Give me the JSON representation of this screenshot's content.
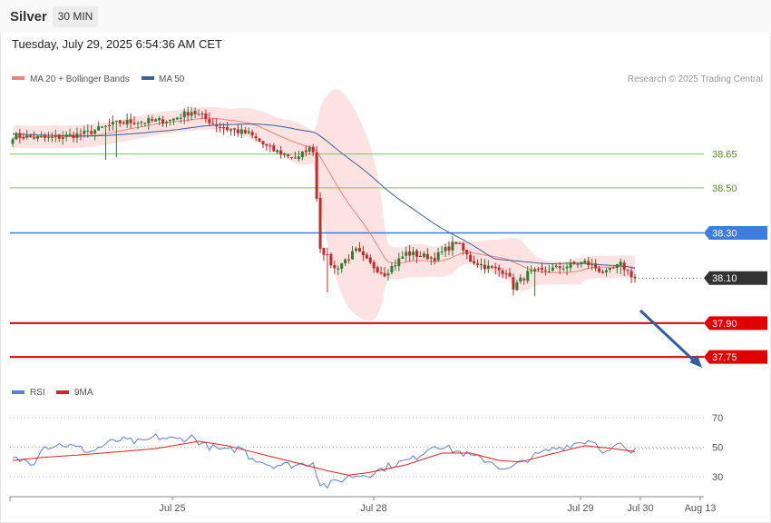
{
  "header": {
    "instrument": "Silver",
    "timeframe": "30 MIN",
    "datetime": "Tuesday, July 29, 2025 6:54:36 AM CET"
  },
  "price_legend": [
    {
      "label": "MA 20 + Bollinger Bands",
      "color": "#f08080"
    },
    {
      "label": "MA 50",
      "color": "#3a5f9a"
    }
  ],
  "credit": "Research © 2025 Trading Central",
  "rsi_legend": [
    {
      "label": "RSI",
      "color": "#5b7fd6"
    },
    {
      "label": "9MA",
      "color": "#e02020"
    }
  ],
  "colors": {
    "bull": "#2e7d32",
    "bear": "#c62828",
    "band_fill": "#fde2e2",
    "ma20": "#f08080",
    "ma50": "#3a5f9a",
    "resistance": "#8bc34a",
    "pivot": "#3d7de0",
    "support": "#e00000",
    "current": "#333333",
    "arrow": "#2f5fa0"
  },
  "chart_data": [
    {
      "type": "candlestick",
      "title": "Silver",
      "timeframe": "30 MIN",
      "x_ticks": [
        "Jul 25",
        "Jul 28",
        "Jul 29",
        "Jul 30",
        "Aug 13"
      ],
      "ylim": [
        37.65,
        38.89
      ],
      "levels": [
        {
          "value": 38.65,
          "label": "38.65",
          "kind": "resistance"
        },
        {
          "value": 38.5,
          "label": "38.50",
          "kind": "resistance"
        },
        {
          "value": 38.3,
          "label": "38.30",
          "kind": "pivot"
        },
        {
          "value": 38.1,
          "label": "38.10",
          "kind": "current"
        },
        {
          "value": 37.9,
          "label": "37.90",
          "kind": "support"
        },
        {
          "value": 37.75,
          "label": "37.75",
          "kind": "support"
        }
      ],
      "current_price": 38.1,
      "forecast_target": 37.75,
      "ohlc_keypoints": [
        {
          "i": 0,
          "close": 38.73
        },
        {
          "i": 10,
          "close": 38.72
        },
        {
          "i": 20,
          "close": 38.74
        },
        {
          "i": 30,
          "close": 38.79
        },
        {
          "i": 44,
          "close": 38.8
        },
        {
          "i": 50,
          "close": 38.84
        },
        {
          "i": 58,
          "close": 38.77
        },
        {
          "i": 66,
          "close": 38.74
        },
        {
          "i": 72,
          "close": 38.67
        },
        {
          "i": 80,
          "close": 38.63
        },
        {
          "i": 82,
          "close": 38.67
        },
        {
          "i": 84,
          "close": 38.67
        },
        {
          "i": 86,
          "close": 38.24
        },
        {
          "i": 90,
          "close": 38.14
        },
        {
          "i": 96,
          "close": 38.22
        },
        {
          "i": 100,
          "close": 38.16
        },
        {
          "i": 104,
          "close": 38.12
        },
        {
          "i": 110,
          "close": 38.21
        },
        {
          "i": 118,
          "close": 38.19
        },
        {
          "i": 124,
          "close": 38.26
        },
        {
          "i": 128,
          "close": 38.18
        },
        {
          "i": 134,
          "close": 38.14
        },
        {
          "i": 138,
          "close": 38.13
        },
        {
          "i": 140,
          "close": 38.06
        },
        {
          "i": 144,
          "close": 38.12
        },
        {
          "i": 148,
          "close": 38.13
        },
        {
          "i": 154,
          "close": 38.15
        },
        {
          "i": 160,
          "close": 38.17
        },
        {
          "i": 166,
          "close": 38.12
        },
        {
          "i": 170,
          "close": 38.16
        },
        {
          "i": 174,
          "close": 38.1
        }
      ]
    },
    {
      "type": "line",
      "title": "RSI",
      "series": [
        {
          "name": "RSI"
        },
        {
          "name": "9MA"
        }
      ],
      "ylim": [
        20,
        80
      ],
      "y_ticks": [
        70,
        50,
        30
      ],
      "rsi_keypoints": [
        {
          "i": 0,
          "v": 42
        },
        {
          "i": 6,
          "v": 40
        },
        {
          "i": 8,
          "v": 50
        },
        {
          "i": 14,
          "v": 52
        },
        {
          "i": 22,
          "v": 47
        },
        {
          "i": 26,
          "v": 52
        },
        {
          "i": 30,
          "v": 55
        },
        {
          "i": 36,
          "v": 53
        },
        {
          "i": 40,
          "v": 57
        },
        {
          "i": 46,
          "v": 55
        },
        {
          "i": 50,
          "v": 57
        },
        {
          "i": 54,
          "v": 51
        },
        {
          "i": 60,
          "v": 47
        },
        {
          "i": 64,
          "v": 50
        },
        {
          "i": 66,
          "v": 44
        },
        {
          "i": 72,
          "v": 38
        },
        {
          "i": 80,
          "v": 38
        },
        {
          "i": 84,
          "v": 40
        },
        {
          "i": 86,
          "v": 25
        },
        {
          "i": 88,
          "v": 24
        },
        {
          "i": 94,
          "v": 30
        },
        {
          "i": 100,
          "v": 32
        },
        {
          "i": 106,
          "v": 38
        },
        {
          "i": 112,
          "v": 42
        },
        {
          "i": 118,
          "v": 52
        },
        {
          "i": 122,
          "v": 49
        },
        {
          "i": 128,
          "v": 44
        },
        {
          "i": 134,
          "v": 40
        },
        {
          "i": 138,
          "v": 34
        },
        {
          "i": 144,
          "v": 42
        },
        {
          "i": 150,
          "v": 48
        },
        {
          "i": 158,
          "v": 53
        },
        {
          "i": 162,
          "v": 55
        },
        {
          "i": 166,
          "v": 46
        },
        {
          "i": 170,
          "v": 52
        },
        {
          "i": 172,
          "v": 46
        },
        {
          "i": 174,
          "v": 47
        }
      ],
      "ma_keypoints": [
        {
          "i": 0,
          "v": 41
        },
        {
          "i": 8,
          "v": 43
        },
        {
          "i": 20,
          "v": 45
        },
        {
          "i": 40,
          "v": 49
        },
        {
          "i": 52,
          "v": 54
        },
        {
          "i": 60,
          "v": 51
        },
        {
          "i": 70,
          "v": 45
        },
        {
          "i": 80,
          "v": 39
        },
        {
          "i": 88,
          "v": 34
        },
        {
          "i": 94,
          "v": 31
        },
        {
          "i": 100,
          "v": 33
        },
        {
          "i": 110,
          "v": 38
        },
        {
          "i": 120,
          "v": 46
        },
        {
          "i": 128,
          "v": 46
        },
        {
          "i": 136,
          "v": 41
        },
        {
          "i": 142,
          "v": 40
        },
        {
          "i": 150,
          "v": 45
        },
        {
          "i": 160,
          "v": 51
        },
        {
          "i": 168,
          "v": 49
        },
        {
          "i": 174,
          "v": 47
        }
      ]
    }
  ]
}
